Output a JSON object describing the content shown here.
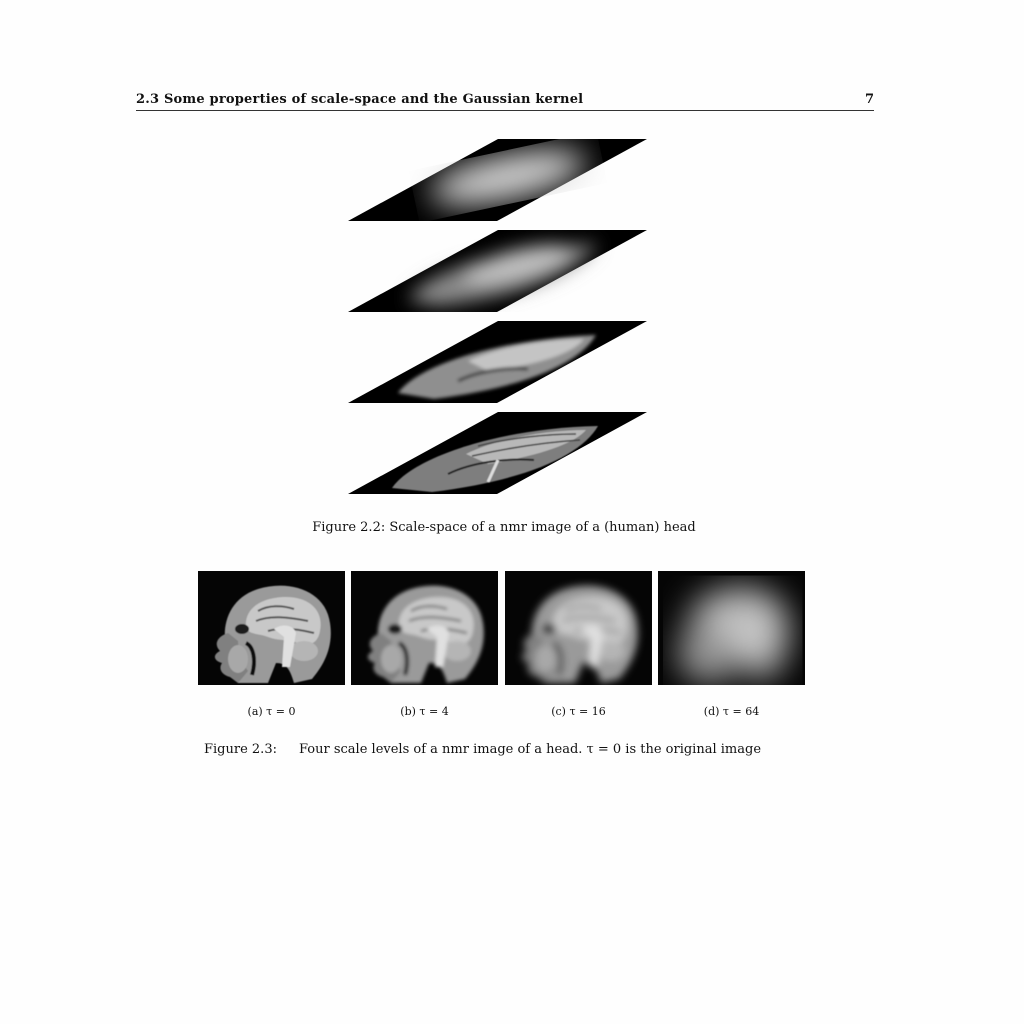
{
  "header": {
    "section_title": "2.3 Some properties of scale-space and the Gaussian kernel",
    "page_number": "7"
  },
  "figure_2_2": {
    "layer_count": 4,
    "layer_blur_levels": [
      "very-coarse",
      "coarse",
      "medium",
      "fine"
    ],
    "caption": "Figure 2.2: Scale-space of a nmr image of a (human) head"
  },
  "figure_2_3": {
    "panels": [
      {
        "label": "(a) τ = 0",
        "tau": 0
      },
      {
        "label": "(b) τ = 4",
        "tau": 4
      },
      {
        "label": "(c) τ = 16",
        "tau": 16
      },
      {
        "label": "(d) τ = 64",
        "tau": 64
      }
    ],
    "caption_label": "Figure 2.3:",
    "caption_text": "Four scale levels of a nmr image of a head. τ = 0 is the original image"
  }
}
